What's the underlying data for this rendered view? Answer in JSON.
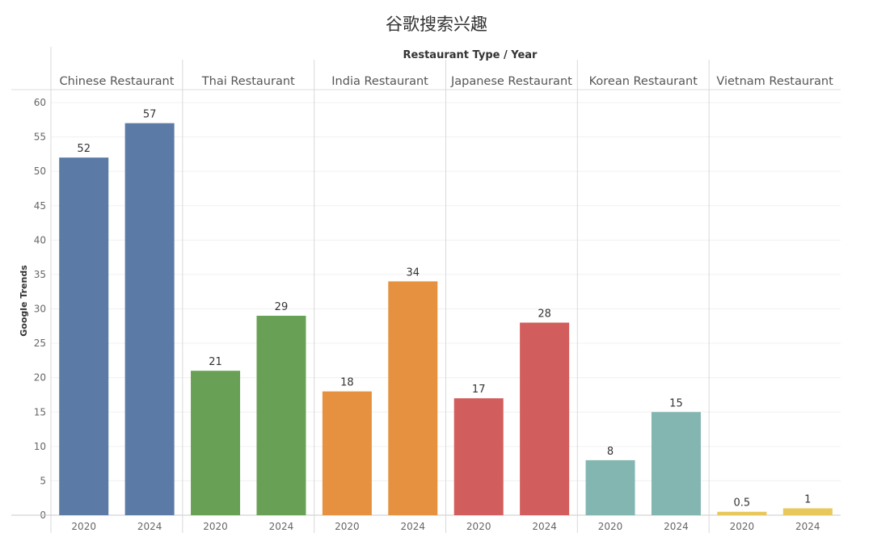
{
  "chart_data": {
    "type": "bar",
    "title": "谷歌搜索兴趣",
    "xlabel": "Restaurant Type / Year",
    "ylabel": "Google Trends",
    "ylim": [
      0,
      60
    ],
    "yticks": [
      0,
      5,
      10,
      15,
      20,
      25,
      30,
      35,
      40,
      45,
      50,
      55,
      60
    ],
    "grid": true,
    "groups": [
      {
        "name": "Chinese Restaurant",
        "color": "#5b7ba6",
        "bars": [
          {
            "year": "2020",
            "value": 52,
            "label": "52"
          },
          {
            "year": "2024",
            "value": 57,
            "label": "57"
          }
        ]
      },
      {
        "name": "Thai Restaurant",
        "color": "#68a155",
        "bars": [
          {
            "year": "2020",
            "value": 21,
            "label": "21"
          },
          {
            "year": "2024",
            "value": 29,
            "label": "29"
          }
        ]
      },
      {
        "name": "India Restaurant",
        "color": "#e5913f",
        "bars": [
          {
            "year": "2020",
            "value": 18,
            "label": "18"
          },
          {
            "year": "2024",
            "value": 34,
            "label": "34"
          }
        ]
      },
      {
        "name": "Japanese Restaurant",
        "color": "#d15e5c",
        "bars": [
          {
            "year": "2020",
            "value": 17,
            "label": "17"
          },
          {
            "year": "2024",
            "value": 28,
            "label": "28"
          }
        ]
      },
      {
        "name": "Korean Restaurant",
        "color": "#83b6b1",
        "bars": [
          {
            "year": "2020",
            "value": 8,
            "label": "8"
          },
          {
            "year": "2024",
            "value": 15,
            "label": "15"
          }
        ]
      },
      {
        "name": "Vietnam Restaurant",
        "color": "#e8c85a",
        "bars": [
          {
            "year": "2020",
            "value": 0.5,
            "label": "0.5"
          },
          {
            "year": "2024",
            "value": 1,
            "label": "1"
          }
        ]
      }
    ]
  }
}
